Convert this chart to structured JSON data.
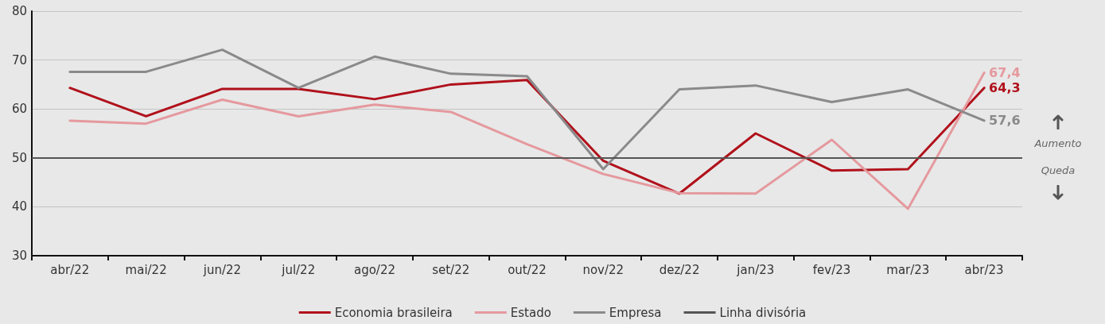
{
  "chart_data": {
    "type": "line",
    "categories": [
      "abr/22",
      "mai/22",
      "jun/22",
      "jul/22",
      "ago/22",
      "set/22",
      "out/22",
      "nov/22",
      "dez/22",
      "jan/23",
      "fev/23",
      "mar/23",
      "abr/23"
    ],
    "series": [
      {
        "name": "Economia brasileira",
        "color": "#b0111b",
        "values": [
          64.3,
          58.5,
          64.1,
          64.1,
          62.0,
          65.0,
          65.9,
          49.4,
          42.7,
          55.0,
          47.4,
          47.7,
          64.3
        ],
        "value_labels": [
          null,
          null,
          null,
          null,
          null,
          null,
          null,
          null,
          null,
          null,
          null,
          null,
          "64,3"
        ]
      },
      {
        "name": "Estado",
        "color": "#e5999e",
        "values": [
          57.6,
          57.0,
          61.9,
          58.5,
          60.9,
          59.4,
          52.8,
          46.7,
          42.8,
          42.7,
          53.7,
          39.6,
          67.4
        ],
        "value_labels": [
          null,
          null,
          null,
          null,
          null,
          null,
          null,
          null,
          null,
          null,
          null,
          null,
          "67,4"
        ]
      },
      {
        "name": "Empresa",
        "color": "#8a898b",
        "values": [
          67.6,
          67.6,
          72.1,
          64.3,
          70.7,
          67.2,
          66.7,
          47.7,
          64.0,
          64.8,
          61.4,
          64.0,
          57.6
        ],
        "value_labels": [
          null,
          null,
          null,
          null,
          null,
          null,
          null,
          null,
          null,
          null,
          null,
          null,
          "57,6"
        ]
      }
    ],
    "ref_lines": [
      {
        "axis": "y",
        "value": 50,
        "label": "Linha divisória",
        "color": "#555555"
      }
    ],
    "annotations": [
      "Aumento",
      "Queda"
    ],
    "ylim": [
      30,
      80
    ],
    "yticks": [
      30,
      40,
      50,
      60,
      70,
      80
    ],
    "grid": "y",
    "legend": "bottom",
    "marker": "none",
    "line_style": "solid"
  }
}
